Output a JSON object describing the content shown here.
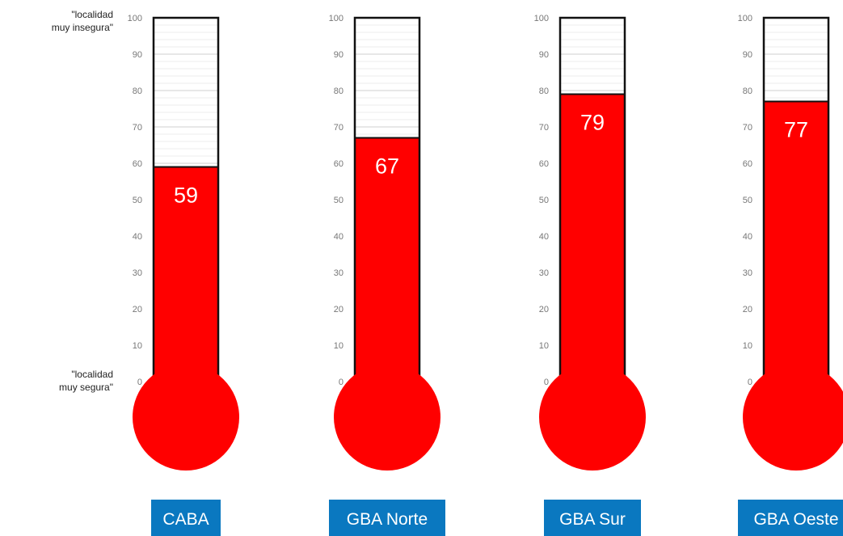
{
  "chart_data": {
    "type": "bar",
    "style": "thermometer",
    "categories": [
      "CABA",
      "GBA Norte",
      "GBA Sur",
      "GBA Oeste"
    ],
    "values": [
      59,
      67,
      79,
      77
    ],
    "ylim": [
      0,
      100
    ],
    "yticks": [
      "0",
      "10",
      "20",
      "30",
      "40",
      "50",
      "60",
      "70",
      "80",
      "90",
      "100"
    ],
    "annotation_top": "\"localidad\nmuy insegura\"",
    "annotation_bottom": "\"localidad\nmuy segura\"",
    "grid": true,
    "colors": {
      "fill": "#ff0000",
      "value_label": "#ffffff",
      "category_box": "#0a78c0",
      "category_text": "#ffffff",
      "tube_outline": "#111111",
      "grid": "#dddddd",
      "tick_text": "#777777"
    }
  }
}
